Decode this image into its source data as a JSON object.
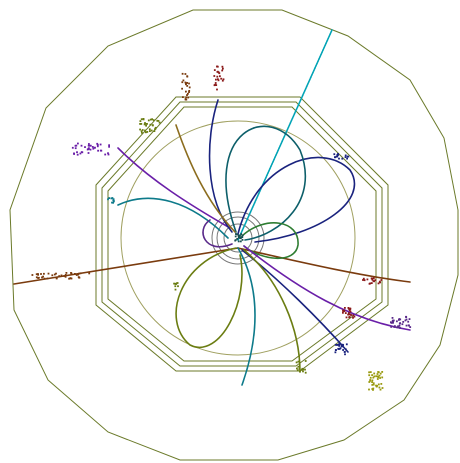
{
  "colors": {
    "background": "#ffffff",
    "detector_outline": "#6b7a2a",
    "inner_ring": "#a0a060",
    "beam_ring": "#777777",
    "track_palette": [
      "#7a3b0e",
      "#6a1fa8",
      "#0d7a8a",
      "#1a237e",
      "#2e7d32",
      "#6b7d12",
      "#8c6d1f",
      "#00a3b5",
      "#8b1a1a",
      "#5a2a8a",
      "#9a9a10"
    ]
  },
  "event_display": {
    "view": "transverse",
    "track_count": 14,
    "cluster_count": 11
  }
}
